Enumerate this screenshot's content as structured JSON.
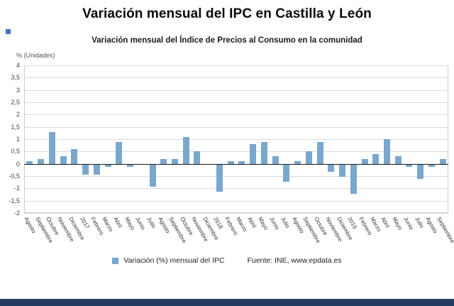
{
  "header": {
    "title": "Variación mensual del IPC en Castilla y León",
    "subtitle": "Variación mensual del Índice de Precios al Consumo en la comunidad"
  },
  "axis": {
    "unit_label": "% (Unidades)",
    "yticks": [
      "4",
      "3,5",
      "3",
      "2,5",
      "2",
      "1,5",
      "1",
      "0,5",
      "0",
      "-0,5",
      "-1",
      "-1,5",
      "-2"
    ]
  },
  "legend": {
    "label": "Variación (%) mensual del IPC"
  },
  "source": {
    "text": "Fuente: INE, www.epdata.es"
  },
  "colors": {
    "bar": "#7aa7cd",
    "grid": "#d9d9d9",
    "zero_line": "#1a1a1a",
    "plot_border": "#cccccc",
    "accent_square": "#4472c4",
    "footer_bar": "#233b5e"
  },
  "chart_data": {
    "type": "bar",
    "title": "Variación mensual del IPC en Castilla y León",
    "subtitle": "Variación mensual del Índice de Precios al Consumo en la comunidad",
    "series_name": "Variación (%) mensual del IPC",
    "categories": [
      "Agosto",
      "Septiembre",
      "Octubre",
      "Noviembre",
      "Diciembre",
      "2017",
      "Febrero",
      "Marzo",
      "Abril",
      "Mayo",
      "Junio",
      "Julio",
      "Agosto",
      "Septiembre",
      "Octubre",
      "Noviembre",
      "Diciembre",
      "2018",
      "Febrero",
      "Marzo",
      "Abril",
      "Mayo",
      "Junio",
      "Julio",
      "Agosto",
      "Septiembre",
      "Octubre",
      "Noviembre",
      "Diciembre",
      "2019",
      "Febrero",
      "Marzo",
      "Abril",
      "Mayo",
      "Junio",
      "Julio",
      "Agosto",
      "Septiembre"
    ],
    "values": [
      0.1,
      0.2,
      1.3,
      0.3,
      0.6,
      -0.4,
      -0.4,
      -0.1,
      0.9,
      -0.1,
      0.0,
      -0.9,
      0.2,
      0.2,
      1.1,
      0.5,
      0.0,
      -1.1,
      0.1,
      0.1,
      0.8,
      0.9,
      0.3,
      -0.7,
      0.1,
      0.5,
      0.9,
      -0.3,
      -0.5,
      -1.2,
      0.2,
      0.4,
      1.0,
      0.3,
      -0.1,
      -0.6,
      -0.1,
      0.2
    ],
    "xlabel": "",
    "ylabel": "% (Unidades)",
    "ylim": [
      -2,
      4
    ],
    "ytick_step": 0.5,
    "grid": true,
    "legend_position": "bottom",
    "source": "Fuente: INE, www.epdata.es"
  }
}
